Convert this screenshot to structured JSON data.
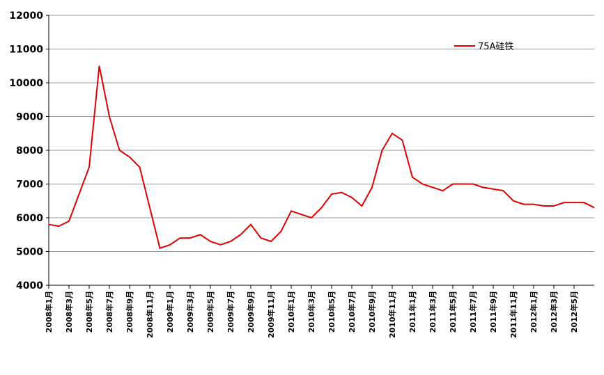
{
  "chart_data": {
    "type": "line",
    "x": [
      "2008年1月",
      null,
      "2008年3月",
      null,
      "2008年5月",
      null,
      "2008年7月",
      null,
      "2008年9月",
      null,
      "2008年11月",
      null,
      "2009年1月",
      null,
      "2009年3月",
      null,
      "2009年5月",
      null,
      "2009年7月",
      null,
      "2009年9月",
      null,
      "2009年11月",
      null,
      "2010年1月",
      null,
      "2010年3月",
      null,
      "2010年5月",
      null,
      "2010年7月",
      null,
      "2010年9月",
      null,
      "2010年11月",
      null,
      "2011年1月",
      null,
      "2011年3月",
      null,
      "2011年5月",
      null,
      "2011年7月",
      null,
      "2011年9月",
      null,
      "2011年11月",
      null,
      "2012年1月",
      null,
      "2012年3月",
      null,
      "2012年5月",
      null,
      null
    ],
    "series": [
      {
        "name": "75A硅铁",
        "color": "#e00000",
        "values": [
          5800,
          5750,
          5900,
          6700,
          7500,
          10500,
          9000,
          8000,
          7800,
          7500,
          6300,
          5100,
          5200,
          5400,
          5400,
          5500,
          5300,
          5200,
          5300,
          5500,
          5800,
          5400,
          5300,
          5600,
          6200,
          6100,
          6000,
          6300,
          6700,
          6750,
          6600,
          6350,
          6900,
          8000,
          8500,
          8300,
          7200,
          7000,
          6900,
          6800,
          7000,
          7000,
          7000,
          6900,
          6850,
          6800,
          6500,
          6400,
          6400,
          6350,
          6350,
          6450,
          6450,
          6450,
          6300
        ]
      }
    ],
    "ylim": [
      4000,
      12000
    ],
    "yticks": [
      4000,
      5000,
      6000,
      7000,
      8000,
      9000,
      10000,
      11000,
      12000
    ],
    "grid": true,
    "legend": "upper right"
  }
}
